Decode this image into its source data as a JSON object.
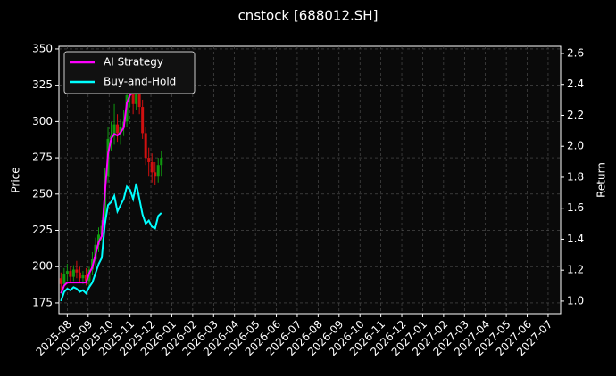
{
  "chart_data": {
    "type": "candlestick",
    "title": "cnstock [688012.SH]",
    "ylabel": "Price",
    "y2label": "Return",
    "x": [
      -0.3,
      -0.15,
      0,
      0.15,
      0.3,
      0.45,
      0.6,
      0.75,
      0.9,
      1.05,
      1.2,
      1.35,
      1.5,
      1.65,
      1.8,
      1.95,
      2.1,
      2.25,
      2.4,
      2.55,
      2.7,
      2.85,
      3,
      3.15,
      3.3,
      3.45,
      3.6,
      3.75,
      3.9,
      4.05,
      4.2,
      4.35,
      4.5
    ],
    "open": [
      192,
      188,
      195,
      197,
      193,
      198,
      196,
      192,
      194,
      190,
      198,
      205,
      215,
      222,
      230,
      262,
      288,
      290,
      298,
      292,
      296,
      300,
      318,
      322,
      312,
      328,
      310,
      292,
      275,
      272,
      265,
      262,
      270
    ],
    "high": [
      196,
      199,
      202,
      200,
      201,
      204,
      200,
      197,
      199,
      200,
      210,
      220,
      227,
      232,
      268,
      296,
      300,
      312,
      305,
      302,
      308,
      325,
      330,
      328,
      340,
      335,
      315,
      296,
      282,
      278,
      272,
      275,
      280
    ],
    "low": [
      184,
      186,
      190,
      189,
      190,
      192,
      189,
      188,
      187,
      186,
      194,
      200,
      210,
      218,
      226,
      258,
      280,
      284,
      286,
      284,
      290,
      296,
      310,
      305,
      308,
      305,
      288,
      270,
      262,
      258,
      256,
      258,
      262
    ],
    "close": [
      188,
      195,
      197,
      193,
      198,
      196,
      192,
      194,
      190,
      198,
      205,
      215,
      222,
      228,
      262,
      288,
      290,
      298,
      292,
      296,
      300,
      318,
      322,
      312,
      328,
      310,
      292,
      275,
      272,
      265,
      262,
      270,
      275
    ],
    "up_color": "#109a10",
    "down_color": "#d01010",
    "series": [
      {
        "name": "AI Strategy",
        "color": "#ff00ff",
        "axis": "y2",
        "values": [
          1.05,
          1.1,
          1.12,
          1.12,
          1.12,
          1.12,
          1.12,
          1.12,
          1.12,
          1.18,
          1.22,
          1.3,
          1.38,
          1.42,
          1.7,
          1.95,
          2.05,
          2.08,
          2.07,
          2.09,
          2.12,
          2.28,
          2.33,
          2.35,
          2.45,
          2.48,
          2.45,
          2.42,
          2.4,
          2.4,
          2.38,
          2.38,
          2.38
        ]
      },
      {
        "name": "Buy-and-Hold",
        "color": "#00ffff",
        "axis": "y2",
        "values": [
          1.0,
          1.06,
          1.08,
          1.07,
          1.09,
          1.08,
          1.06,
          1.07,
          1.05,
          1.09,
          1.12,
          1.18,
          1.24,
          1.28,
          1.5,
          1.62,
          1.64,
          1.68,
          1.58,
          1.62,
          1.66,
          1.74,
          1.72,
          1.66,
          1.76,
          1.66,
          1.56,
          1.5,
          1.52,
          1.48,
          1.47,
          1.55,
          1.57
        ]
      }
    ],
    "xlim": [
      -0.4,
      23.6
    ],
    "xticks": [
      {
        "value": 0,
        "label": "2025-08"
      },
      {
        "value": 1,
        "label": "2025-09"
      },
      {
        "value": 2,
        "label": "2025-10"
      },
      {
        "value": 3,
        "label": "2025-11"
      },
      {
        "value": 4,
        "label": "2025-12"
      },
      {
        "value": 5,
        "label": "2026-01"
      },
      {
        "value": 6,
        "label": "2026-02"
      },
      {
        "value": 7,
        "label": "2026-03"
      },
      {
        "value": 8,
        "label": "2026-04"
      },
      {
        "value": 9,
        "label": "2026-05"
      },
      {
        "value": 10,
        "label": "2026-06"
      },
      {
        "value": 11,
        "label": "2026-07"
      },
      {
        "value": 12,
        "label": "2026-08"
      },
      {
        "value": 13,
        "label": "2026-09"
      },
      {
        "value": 14,
        "label": "2026-10"
      },
      {
        "value": 15,
        "label": "2026-11"
      },
      {
        "value": 16,
        "label": "2026-12"
      },
      {
        "value": 17,
        "label": "2027-01"
      },
      {
        "value": 18,
        "label": "2027-02"
      },
      {
        "value": 19,
        "label": "2027-03"
      },
      {
        "value": 20,
        "label": "2027-04"
      },
      {
        "value": 21,
        "label": "2027-05"
      },
      {
        "value": 22,
        "label": "2027-06"
      },
      {
        "value": 23,
        "label": "2027-07"
      }
    ],
    "ylim": [
      167.6,
      351.8
    ],
    "yticks": [
      175,
      200,
      225,
      250,
      275,
      300,
      325,
      350
    ],
    "y2lim": [
      0.919,
      2.646
    ],
    "y2ticks": [
      {
        "value": 1,
        "label": "1.0"
      },
      1.2,
      1.4,
      1.6,
      1.8,
      {
        "value": 2,
        "label": "2.0"
      },
      2.2,
      2.4,
      2.6
    ],
    "grid": true,
    "legend": "upper left"
  }
}
